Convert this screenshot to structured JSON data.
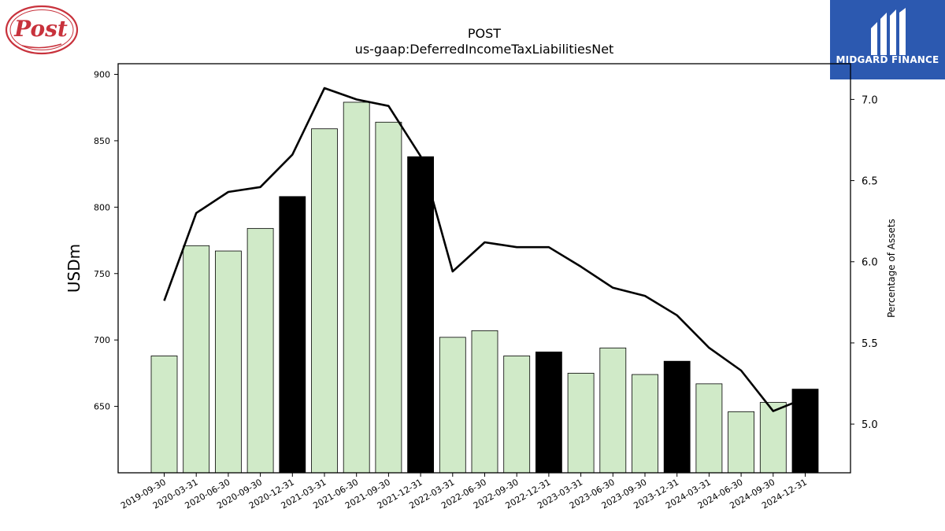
{
  "logos": {
    "left_text": "Post",
    "right_text": "MIDGARD FINANCE"
  },
  "chart_data": {
    "type": "bar",
    "title": "POST",
    "subtitle": "us-gaap:DeferredIncomeTaxLiabilitiesNet",
    "ylabel": "USDm",
    "y2label": "Percentage of Assets",
    "ylim": [
      600,
      908
    ],
    "y2lim": [
      4.7,
      7.22
    ],
    "yticks": [
      650,
      700,
      750,
      800,
      850,
      900
    ],
    "y2ticks": [
      "5.0",
      "5.5",
      "6.0",
      "6.5",
      "7.0"
    ],
    "categories": [
      "2019-09-30",
      "2020-03-31",
      "2020-06-30",
      "2020-09-30",
      "2020-12-31",
      "2021-03-31",
      "2021-06-30",
      "2021-09-30",
      "2021-12-31",
      "2022-03-31",
      "2022-06-30",
      "2022-09-30",
      "2022-12-31",
      "2023-03-31",
      "2023-06-30",
      "2023-09-30",
      "2023-12-31",
      "2024-03-31",
      "2024-06-30",
      "2024-09-30",
      "2024-12-31"
    ],
    "series": [
      {
        "type": "bar",
        "values": [
          688,
          771,
          767,
          784,
          808,
          859,
          879,
          864,
          838,
          702,
          707,
          688,
          691,
          675,
          694,
          674,
          684,
          667,
          646,
          653,
          663
        ],
        "highlight": [
          false,
          false,
          false,
          false,
          true,
          false,
          false,
          false,
          true,
          false,
          false,
          false,
          true,
          false,
          false,
          false,
          true,
          false,
          false,
          false,
          true
        ]
      },
      {
        "type": "line",
        "axis": "right",
        "values": [
          5.76,
          6.3,
          6.43,
          6.46,
          6.66,
          7.07,
          7.0,
          6.96,
          6.65,
          5.94,
          6.12,
          6.09,
          6.09,
          5.97,
          5.84,
          5.79,
          5.67,
          5.47,
          5.33,
          5.08,
          5.16
        ]
      }
    ],
    "colors": {
      "bar_fill": "#d0eac8",
      "bar_highlight": "#000000",
      "bar_edge": "#000000",
      "line": "#000000"
    },
    "grid": false,
    "legend": "none"
  }
}
